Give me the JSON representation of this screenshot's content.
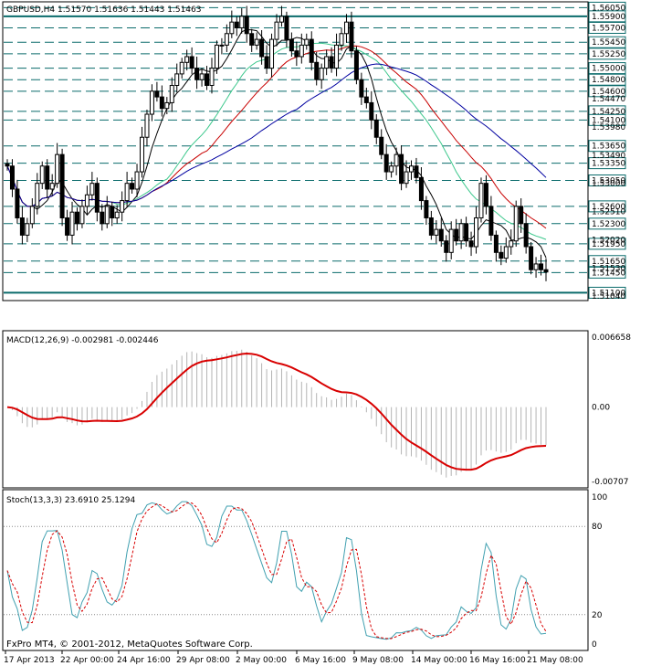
{
  "header": {
    "symbol_text": "GBPUSD,H4  1.51570 1.51636 1.51443 1.51463"
  },
  "copyright": "FxPro MT4, © 2001-2012, MetaQuotes Software Corp.",
  "colors": {
    "candle": "#000000",
    "level_line": "#0a6b6b",
    "ma_fast": "#000000",
    "ma_slow": "#c80000",
    "ma_green": "#3cc88c",
    "ma_blue": "#0000a0",
    "macd_hist": "#b4b4b4",
    "macd_signal": "#d80000",
    "stoch_main": "#40a0b0",
    "stoch_signal": "#d80000"
  },
  "price_axis": {
    "levels": [
      "1.56050",
      "1.55900",
      "1.55700",
      "1.55450",
      "1.55250",
      "1.55000",
      "1.54800",
      "1.54600",
      "1.54250",
      "1.54100",
      "1.53650",
      "1.53350",
      "1.53050",
      "1.52600",
      "1.52300",
      "1.51950",
      "1.51650",
      "1.51450",
      "1.51100"
    ],
    "plain_ticks": [
      "1.54470",
      "1.53980",
      "1.53490",
      "1.53000",
      "1.52510",
      "1.52020",
      "1.51530",
      "1.51040"
    ]
  },
  "macd": {
    "label": "MACD(12,26,9) -0.002981 -0.002446",
    "ticks": [
      "0.006658",
      "0.00",
      "-0.00707"
    ]
  },
  "stoch": {
    "label": "Stoch(13,3,3) 23.6910 25.1294",
    "ticks": [
      "100",
      "80",
      "20",
      "0"
    ]
  },
  "time_axis": [
    "17 Apr 2013",
    "22 Apr 00:00",
    "24 Apr 16:00",
    "29 Apr 08:00",
    "2 May 00:00",
    "6 May 16:00",
    "9 May 08:00",
    "14 May 00:00",
    "16 May 16:00",
    "21 May 08:00"
  ],
  "chart_data": {
    "type": "candlestick",
    "symbol": "GBPUSD",
    "timeframe": "H4",
    "close_series": [
      1.533,
      1.529,
      1.524,
      1.521,
      1.523,
      1.526,
      1.53,
      1.533,
      1.529,
      1.53,
      1.535,
      1.524,
      1.521,
      1.525,
      1.523,
      1.526,
      1.528,
      1.53,
      1.525,
      1.523,
      1.526,
      1.524,
      1.525,
      1.527,
      1.53,
      1.529,
      1.532,
      1.538,
      1.542,
      1.546,
      1.545,
      1.543,
      1.544,
      1.547,
      1.549,
      1.551,
      1.552,
      1.55,
      1.548,
      1.549,
      1.547,
      1.55,
      1.554,
      1.554,
      1.556,
      1.558,
      1.557,
      1.559,
      1.556,
      1.554,
      1.555,
      1.552,
      1.55,
      1.555,
      1.558,
      1.559,
      1.555,
      1.553,
      1.552,
      1.554,
      1.555,
      1.551,
      1.548,
      1.55,
      1.552,
      1.55,
      1.554,
      1.556,
      1.558,
      1.553,
      1.548,
      1.545,
      1.544,
      1.541,
      1.538,
      1.535,
      1.532,
      1.533,
      1.535,
      1.53,
      1.532,
      1.533,
      1.531,
      1.527,
      1.524,
      1.521,
      1.522,
      1.52,
      1.518,
      1.522,
      1.52,
      1.523,
      1.52,
      1.519,
      1.524,
      1.53,
      1.526,
      1.521,
      1.518,
      1.517,
      1.519,
      1.52,
      1.526,
      1.523,
      1.519,
      1.515,
      1.516,
      1.515,
      1.5146
    ]
  }
}
